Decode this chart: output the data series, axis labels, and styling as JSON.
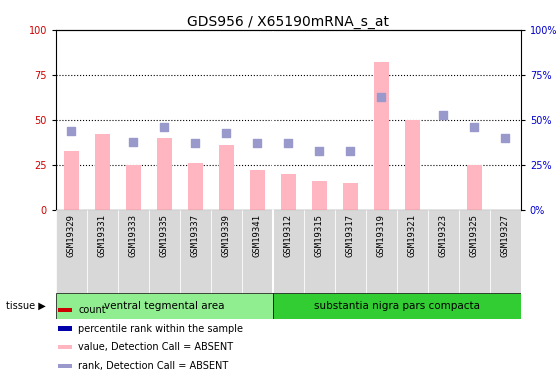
{
  "title": "GDS956 / X65190mRNA_s_at",
  "samples": [
    "GSM19329",
    "GSM19331",
    "GSM19333",
    "GSM19335",
    "GSM19337",
    "GSM19339",
    "GSM19341",
    "GSM19312",
    "GSM19315",
    "GSM19317",
    "GSM19319",
    "GSM19321",
    "GSM19323",
    "GSM19325",
    "GSM19327"
  ],
  "bar_values_absent": [
    33,
    42,
    25,
    40,
    26,
    36,
    22,
    20,
    16,
    15,
    82,
    50,
    0,
    25,
    0
  ],
  "rank_absent": [
    44,
    0,
    38,
    46,
    37,
    43,
    37,
    37,
    33,
    33,
    63,
    0,
    53,
    46,
    40
  ],
  "group1_count": 7,
  "group2_count": 8,
  "group1_label": "ventral tegmental area",
  "group2_label": "substantia nigra pars compacta",
  "group1_color": "#90EE90",
  "group2_color": "#32CD32",
  "bar_color_absent": "#FFB6C1",
  "rank_color_absent": "#9999CC",
  "count_color": "#CC0000",
  "rank_present_color": "#0000AA",
  "background_color": "#ffffff",
  "plot_bg": "#ffffff",
  "tick_bg": "#D8D8D8",
  "title_fontsize": 10,
  "left_ytick_color": "#CC0000",
  "right_ytick_color": "#0000CC"
}
